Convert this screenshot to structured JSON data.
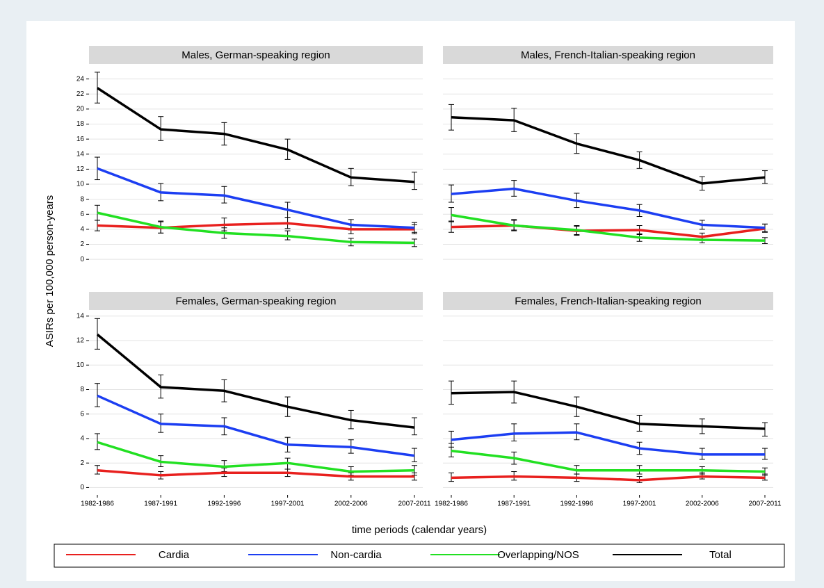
{
  "ylabel": "ASIRs per 100,000 person-years",
  "xlabel": "time periods (calendar years)",
  "chart_data": [
    {
      "type": "line",
      "title": "Males, German-speaking region",
      "categories": [
        "1982-1986",
        "1987-1991",
        "1992-1996",
        "1997-2001",
        "2002-2006",
        "2007-2011"
      ],
      "ylim": [
        -1,
        26
      ],
      "yticks": [
        0,
        2,
        4,
        6,
        8,
        10,
        12,
        14,
        16,
        18,
        20,
        22,
        24
      ],
      "grid": true,
      "ytick_labels": true,
      "xtick_labels": false,
      "series": [
        {
          "name": "Cardia",
          "color": "#e8201e",
          "values": [
            4.5,
            4.2,
            4.6,
            4.8,
            4.0,
            4.0
          ],
          "ci_low": [
            3.8,
            3.5,
            3.8,
            4.1,
            3.4,
            3.4
          ],
          "ci_high": [
            5.2,
            5.0,
            5.5,
            5.6,
            4.7,
            4.6
          ]
        },
        {
          "name": "Non-cardia",
          "color": "#1c3ef2",
          "values": [
            12.1,
            8.9,
            8.5,
            6.6,
            4.6,
            4.2
          ],
          "ci_low": [
            10.6,
            7.8,
            7.5,
            5.6,
            3.9,
            3.6
          ],
          "ci_high": [
            13.6,
            10.1,
            9.7,
            7.6,
            5.3,
            4.9
          ]
        },
        {
          "name": "Overlapping/NOS",
          "color": "#22e022",
          "values": [
            6.2,
            4.3,
            3.5,
            3.1,
            2.3,
            2.2
          ],
          "ci_low": [
            5.2,
            3.5,
            2.8,
            2.6,
            1.8,
            1.7
          ],
          "ci_high": [
            7.2,
            5.1,
            4.2,
            3.8,
            2.8,
            2.7
          ]
        },
        {
          "name": "Total",
          "color": "#000000",
          "values": [
            22.8,
            17.3,
            16.7,
            14.6,
            10.9,
            10.3
          ],
          "ci_low": [
            20.8,
            15.8,
            15.2,
            13.3,
            9.8,
            9.3
          ],
          "ci_high": [
            24.9,
            19.0,
            18.2,
            16.0,
            12.1,
            11.6
          ]
        }
      ]
    },
    {
      "type": "line",
      "title": "Males, French-Italian-speaking region",
      "categories": [
        "1982-1986",
        "1987-1991",
        "1992-1996",
        "1997-2001",
        "2002-2006",
        "2007-2011"
      ],
      "ylim": [
        -1,
        26
      ],
      "yticks": [
        0,
        2,
        4,
        6,
        8,
        10,
        12,
        14,
        16,
        18,
        20,
        22,
        24
      ],
      "grid": true,
      "ytick_labels": false,
      "xtick_labels": false,
      "series": [
        {
          "name": "Cardia",
          "color": "#e8201e",
          "values": [
            4.3,
            4.5,
            3.8,
            3.9,
            3.0,
            4.1
          ],
          "ci_low": [
            3.6,
            3.9,
            3.2,
            3.3,
            2.5,
            3.6
          ],
          "ci_high": [
            5.1,
            5.2,
            4.4,
            4.5,
            3.5,
            4.7
          ]
        },
        {
          "name": "Non-cardia",
          "color": "#1c3ef2",
          "values": [
            8.7,
            9.4,
            7.8,
            6.5,
            4.6,
            4.2
          ],
          "ci_low": [
            7.6,
            8.4,
            6.9,
            5.7,
            4.0,
            3.7
          ],
          "ci_high": [
            9.9,
            10.5,
            8.8,
            7.3,
            5.2,
            4.7
          ]
        },
        {
          "name": "Overlapping/NOS",
          "color": "#22e022",
          "values": [
            5.9,
            4.5,
            3.9,
            2.9,
            2.6,
            2.5
          ],
          "ci_low": [
            5.0,
            3.8,
            3.3,
            2.4,
            2.2,
            2.1
          ],
          "ci_high": [
            6.9,
            5.3,
            4.5,
            3.4,
            3.0,
            2.9
          ]
        },
        {
          "name": "Total",
          "color": "#000000",
          "values": [
            18.9,
            18.5,
            15.4,
            13.2,
            10.1,
            10.9
          ],
          "ci_low": [
            17.2,
            17.0,
            14.1,
            12.1,
            9.2,
            10.1
          ],
          "ci_high": [
            20.6,
            20.1,
            16.7,
            14.3,
            11.0,
            11.8
          ]
        }
      ]
    },
    {
      "type": "line",
      "title": "Females, German-speaking region",
      "categories": [
        "1982-1986",
        "1987-1991",
        "1992-1996",
        "1997-2001",
        "2002-2006",
        "2007-2011"
      ],
      "ylim": [
        -0.6,
        14.5
      ],
      "yticks": [
        0,
        2,
        4,
        6,
        8,
        10,
        12,
        14
      ],
      "grid": true,
      "ytick_labels": true,
      "xtick_labels": true,
      "series": [
        {
          "name": "Cardia",
          "color": "#e8201e",
          "values": [
            1.4,
            1.0,
            1.2,
            1.2,
            0.9,
            0.9
          ],
          "ci_low": [
            1.1,
            0.7,
            0.9,
            0.9,
            0.6,
            0.6
          ],
          "ci_high": [
            1.8,
            1.3,
            1.6,
            1.5,
            1.2,
            1.2
          ]
        },
        {
          "name": "Non-cardia",
          "color": "#1c3ef2",
          "values": [
            7.5,
            5.2,
            5.0,
            3.5,
            3.3,
            2.6
          ],
          "ci_low": [
            6.6,
            4.5,
            4.3,
            2.9,
            2.8,
            2.1
          ],
          "ci_high": [
            8.5,
            6.0,
            5.7,
            4.1,
            3.9,
            3.2
          ]
        },
        {
          "name": "Overlapping/NOS",
          "color": "#22e022",
          "values": [
            3.7,
            2.1,
            1.7,
            2.0,
            1.3,
            1.4
          ],
          "ci_low": [
            3.1,
            1.7,
            1.3,
            1.5,
            1.0,
            1.0
          ],
          "ci_high": [
            4.4,
            2.6,
            2.2,
            2.4,
            1.7,
            1.8
          ]
        },
        {
          "name": "Total",
          "color": "#000000",
          "values": [
            12.5,
            8.2,
            7.9,
            6.6,
            5.5,
            4.9
          ],
          "ci_low": [
            11.3,
            7.3,
            7.0,
            5.8,
            4.8,
            4.3
          ],
          "ci_high": [
            13.8,
            9.2,
            8.8,
            7.4,
            6.3,
            5.7
          ]
        }
      ]
    },
    {
      "type": "line",
      "title": "Females, French-Italian-speaking region",
      "categories": [
        "1982-1986",
        "1987-1991",
        "1992-1996",
        "1997-2001",
        "2002-2006",
        "2007-2011"
      ],
      "ylim": [
        -0.6,
        14.5
      ],
      "yticks": [
        0,
        2,
        4,
        6,
        8,
        10,
        12,
        14
      ],
      "grid": true,
      "ytick_labels": false,
      "xtick_labels": true,
      "series": [
        {
          "name": "Cardia",
          "color": "#e8201e",
          "values": [
            0.8,
            0.9,
            0.8,
            0.6,
            0.9,
            0.8
          ],
          "ci_low": [
            0.5,
            0.6,
            0.5,
            0.4,
            0.7,
            0.6
          ],
          "ci_high": [
            1.2,
            1.3,
            1.1,
            0.9,
            1.2,
            1.1
          ]
        },
        {
          "name": "Non-cardia",
          "color": "#1c3ef2",
          "values": [
            3.9,
            4.4,
            4.5,
            3.2,
            2.7,
            2.7
          ],
          "ci_low": [
            3.3,
            3.8,
            3.9,
            2.7,
            2.3,
            2.3
          ],
          "ci_high": [
            4.6,
            5.2,
            5.2,
            3.7,
            3.2,
            3.2
          ]
        },
        {
          "name": "Overlapping/NOS",
          "color": "#22e022",
          "values": [
            3.0,
            2.4,
            1.4,
            1.4,
            1.4,
            1.3
          ],
          "ci_low": [
            2.5,
            1.9,
            1.1,
            1.1,
            1.1,
            1.0
          ],
          "ci_high": [
            3.6,
            2.9,
            1.8,
            1.8,
            1.7,
            1.6
          ]
        },
        {
          "name": "Total",
          "color": "#000000",
          "values": [
            7.7,
            7.8,
            6.6,
            5.2,
            5.0,
            4.8
          ],
          "ci_low": [
            6.8,
            6.9,
            5.8,
            4.6,
            4.4,
            4.2
          ],
          "ci_high": [
            8.7,
            8.7,
            7.4,
            5.9,
            5.6,
            5.3
          ]
        }
      ]
    }
  ]
}
